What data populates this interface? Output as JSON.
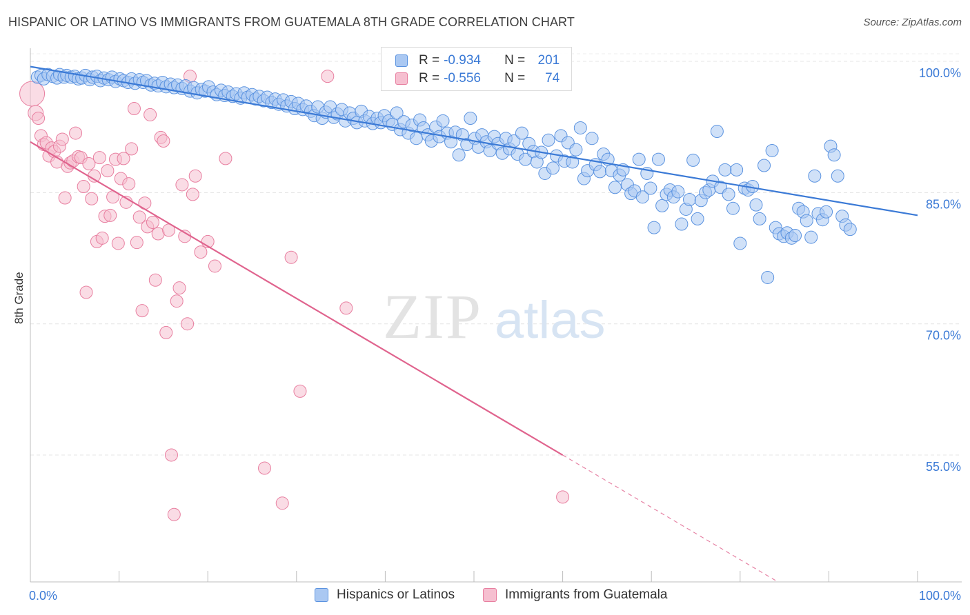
{
  "header": {
    "title": "HISPANIC OR LATINO VS IMMIGRANTS FROM GUATEMALA 8TH GRADE CORRELATION CHART",
    "source": "Source: ZipAtlas.com"
  },
  "watermark": {
    "zip": "ZIP",
    "atlas": "atlas"
  },
  "legend": {
    "r_label": "R =",
    "n_label": "N =",
    "series": [
      {
        "name": "Hispanics or Latinos",
        "r": "-0.934",
        "n": "201",
        "color": "#5b93e0",
        "fill": "#aac8f2"
      },
      {
        "name": "Immigrants from Guatemala",
        "r": "-0.556",
        "n": "74",
        "color": "#e87fa0",
        "fill": "#f6bfd0"
      }
    ]
  },
  "chart_data": {
    "type": "scatter",
    "title": "HISPANIC OR LATINO VS IMMIGRANTS FROM GUATEMALA 8TH GRADE CORRELATION CHART",
    "xlabel": "",
    "ylabel": "8th Grade",
    "xlim": [
      0,
      100
    ],
    "ylim": [
      40.5,
      101.5
    ],
    "x_tick_labels": [
      "0.0%",
      "100.0%"
    ],
    "y_ticks": [
      55,
      70,
      85,
      100
    ],
    "y_tick_labels": [
      "55.0%",
      "70.0%",
      "85.0%",
      "100.0%"
    ],
    "grid": true,
    "legend_position": "top-center",
    "series": [
      {
        "name": "Hispanics or Latinos",
        "color": "#3b7ad6",
        "trend": {
          "x0": 0,
          "y0": 99.4,
          "x1": 100,
          "y1": 82.4
        },
        "points": [
          [
            0.8,
            98.2
          ],
          [
            1.2,
            98.4
          ],
          [
            1.5,
            98.0
          ],
          [
            2.0,
            98.5
          ],
          [
            2.5,
            98.3
          ],
          [
            3.0,
            98.1
          ],
          [
            3.3,
            98.5
          ],
          [
            3.8,
            98.2
          ],
          [
            4.1,
            98.4
          ],
          [
            4.6,
            98.2
          ],
          [
            5.0,
            98.3
          ],
          [
            5.4,
            98.0
          ],
          [
            5.8,
            98.1
          ],
          [
            6.2,
            98.4
          ],
          [
            6.7,
            97.9
          ],
          [
            7.0,
            98.2
          ],
          [
            7.5,
            98.3
          ],
          [
            7.9,
            97.8
          ],
          [
            8.3,
            98.1
          ],
          [
            8.8,
            97.9
          ],
          [
            9.2,
            98.2
          ],
          [
            9.6,
            97.7
          ],
          [
            10.1,
            98.0
          ],
          [
            10.5,
            97.8
          ],
          [
            11.0,
            97.6
          ],
          [
            11.4,
            98.0
          ],
          [
            11.8,
            97.5
          ],
          [
            12.3,
            97.9
          ],
          [
            12.7,
            97.6
          ],
          [
            13.1,
            97.8
          ],
          [
            13.6,
            97.3
          ],
          [
            14.0,
            97.5
          ],
          [
            14.4,
            97.2
          ],
          [
            14.9,
            97.6
          ],
          [
            15.3,
            97.1
          ],
          [
            15.8,
            97.4
          ],
          [
            16.2,
            97.0
          ],
          [
            16.6,
            97.3
          ],
          [
            17.1,
            96.9
          ],
          [
            17.5,
            97.2
          ],
          [
            18.0,
            96.6
          ],
          [
            18.4,
            97.0
          ],
          [
            18.8,
            96.4
          ],
          [
            19.3,
            96.8
          ],
          [
            19.7,
            96.6
          ],
          [
            20.1,
            97.1
          ],
          [
            20.6,
            96.5
          ],
          [
            21.0,
            96.2
          ],
          [
            21.5,
            96.7
          ],
          [
            21.9,
            96.1
          ],
          [
            22.3,
            96.5
          ],
          [
            22.8,
            96.0
          ],
          [
            23.2,
            96.3
          ],
          [
            23.7,
            95.8
          ],
          [
            24.1,
            96.4
          ],
          [
            24.5,
            95.9
          ],
          [
            25.0,
            96.2
          ],
          [
            25.4,
            95.7
          ],
          [
            25.8,
            96.0
          ],
          [
            26.3,
            95.5
          ],
          [
            26.7,
            95.9
          ],
          [
            27.2,
            95.3
          ],
          [
            27.6,
            95.7
          ],
          [
            28.0,
            95.1
          ],
          [
            28.5,
            95.6
          ],
          [
            28.9,
            94.9
          ],
          [
            29.4,
            95.4
          ],
          [
            29.8,
            94.6
          ],
          [
            30.2,
            95.2
          ],
          [
            30.7,
            94.5
          ],
          [
            31.1,
            94.9
          ],
          [
            31.6,
            94.3
          ],
          [
            32.0,
            93.8
          ],
          [
            32.4,
            94.8
          ],
          [
            32.9,
            93.5
          ],
          [
            33.3,
            94.2
          ],
          [
            33.8,
            94.8
          ],
          [
            34.2,
            93.6
          ],
          [
            34.6,
            94.0
          ],
          [
            35.1,
            94.5
          ],
          [
            35.5,
            93.2
          ],
          [
            36.0,
            94.1
          ],
          [
            36.4,
            93.5
          ],
          [
            36.8,
            93.0
          ],
          [
            37.3,
            94.3
          ],
          [
            37.7,
            93.2
          ],
          [
            38.2,
            93.7
          ],
          [
            38.6,
            92.9
          ],
          [
            39.1,
            93.5
          ],
          [
            39.5,
            93.0
          ],
          [
            39.9,
            93.8
          ],
          [
            40.4,
            93.2
          ],
          [
            40.8,
            92.8
          ],
          [
            41.3,
            94.1
          ],
          [
            41.7,
            92.2
          ],
          [
            42.1,
            93.1
          ],
          [
            42.6,
            91.8
          ],
          [
            43.0,
            92.7
          ],
          [
            43.5,
            91.2
          ],
          [
            43.9,
            93.3
          ],
          [
            44.3,
            92.4
          ],
          [
            44.8,
            91.6
          ],
          [
            45.2,
            90.9
          ],
          [
            45.7,
            92.5
          ],
          [
            46.1,
            91.4
          ],
          [
            46.5,
            93.2
          ],
          [
            47.0,
            91.8
          ],
          [
            47.4,
            90.8
          ],
          [
            47.9,
            91.9
          ],
          [
            48.3,
            89.3
          ],
          [
            48.7,
            91.6
          ],
          [
            49.2,
            90.5
          ],
          [
            49.6,
            93.5
          ],
          [
            50.1,
            91.2
          ],
          [
            50.5,
            90.2
          ],
          [
            50.9,
            91.6
          ],
          [
            51.4,
            90.8
          ],
          [
            51.8,
            89.8
          ],
          [
            52.3,
            91.4
          ],
          [
            52.7,
            90.6
          ],
          [
            53.2,
            89.5
          ],
          [
            53.6,
            91.2
          ],
          [
            54.0,
            90.0
          ],
          [
            54.5,
            90.9
          ],
          [
            54.9,
            89.4
          ],
          [
            55.4,
            91.8
          ],
          [
            55.8,
            88.8
          ],
          [
            56.2,
            90.6
          ],
          [
            56.7,
            89.7
          ],
          [
            57.1,
            88.5
          ],
          [
            57.6,
            89.6
          ],
          [
            58.0,
            87.2
          ],
          [
            58.4,
            91.0
          ],
          [
            58.9,
            87.8
          ],
          [
            59.3,
            89.2
          ],
          [
            59.8,
            91.5
          ],
          [
            60.2,
            88.6
          ],
          [
            60.6,
            90.7
          ],
          [
            61.1,
            88.5
          ],
          [
            61.5,
            89.9
          ],
          [
            62.0,
            92.4
          ],
          [
            62.4,
            86.6
          ],
          [
            62.8,
            87.5
          ],
          [
            63.3,
            91.2
          ],
          [
            63.7,
            88.2
          ],
          [
            64.2,
            87.4
          ],
          [
            64.6,
            89.4
          ],
          [
            65.1,
            88.8
          ],
          [
            65.5,
            87.5
          ],
          [
            65.9,
            85.6
          ],
          [
            66.4,
            87.0
          ],
          [
            66.8,
            87.6
          ],
          [
            67.3,
            85.9
          ],
          [
            67.7,
            84.9
          ],
          [
            68.1,
            85.2
          ],
          [
            68.6,
            88.8
          ],
          [
            69.0,
            84.5
          ],
          [
            69.5,
            87.2
          ],
          [
            69.9,
            85.5
          ],
          [
            70.3,
            81.0
          ],
          [
            70.8,
            88.8
          ],
          [
            71.2,
            83.5
          ],
          [
            71.7,
            84.8
          ],
          [
            72.1,
            85.3
          ],
          [
            72.5,
            84.5
          ],
          [
            73.0,
            85.1
          ],
          [
            73.4,
            81.4
          ],
          [
            73.9,
            83.1
          ],
          [
            74.3,
            84.2
          ],
          [
            74.7,
            88.7
          ],
          [
            75.2,
            82.0
          ],
          [
            75.6,
            84.1
          ],
          [
            76.1,
            85.0
          ],
          [
            76.5,
            85.3
          ],
          [
            76.9,
            86.3
          ],
          [
            77.4,
            92.0
          ],
          [
            77.8,
            85.6
          ],
          [
            78.3,
            87.6
          ],
          [
            78.7,
            84.8
          ],
          [
            79.2,
            83.2
          ],
          [
            79.6,
            87.6
          ],
          [
            80.0,
            79.2
          ],
          [
            80.5,
            85.5
          ],
          [
            80.9,
            85.3
          ],
          [
            81.4,
            85.7
          ],
          [
            81.8,
            83.6
          ],
          [
            82.2,
            82.0
          ],
          [
            82.7,
            88.1
          ],
          [
            83.1,
            75.3
          ],
          [
            83.6,
            89.8
          ],
          [
            84.0,
            81.0
          ],
          [
            84.4,
            80.3
          ],
          [
            84.9,
            80.0
          ],
          [
            85.3,
            80.4
          ],
          [
            85.8,
            79.8
          ],
          [
            86.2,
            80.1
          ],
          [
            86.6,
            83.2
          ],
          [
            87.1,
            82.8
          ],
          [
            87.5,
            81.8
          ],
          [
            88.0,
            79.9
          ],
          [
            88.4,
            86.9
          ],
          [
            88.8,
            82.6
          ],
          [
            89.3,
            81.9
          ],
          [
            89.7,
            82.8
          ],
          [
            90.2,
            90.3
          ],
          [
            90.6,
            89.3
          ],
          [
            91.0,
            86.9
          ],
          [
            91.5,
            82.3
          ],
          [
            91.9,
            81.3
          ],
          [
            92.4,
            80.8
          ]
        ]
      },
      {
        "name": "Immigrants from Guatemala",
        "color": "#e0648e",
        "trend": {
          "x0": 0,
          "y0": 90.8,
          "x1": 60,
          "y1": 55.0
        },
        "trend_dashed": {
          "x0": 60,
          "y0": 55.0,
          "x1": 100,
          "y1": 31.1
        },
        "points": [
          [
            0.2,
            96.3
          ],
          [
            0.6,
            94.1
          ],
          [
            0.9,
            93.5
          ],
          [
            1.2,
            91.5
          ],
          [
            1.5,
            90.5
          ],
          [
            1.8,
            90.7
          ],
          [
            2.1,
            89.2
          ],
          [
            2.4,
            90.1
          ],
          [
            2.7,
            89.7
          ],
          [
            3.0,
            88.5
          ],
          [
            3.3,
            90.3
          ],
          [
            3.6,
            91.1
          ],
          [
            3.9,
            84.4
          ],
          [
            4.2,
            88.0
          ],
          [
            4.5,
            88.4
          ],
          [
            4.8,
            88.6
          ],
          [
            5.1,
            91.8
          ],
          [
            5.4,
            89.1
          ],
          [
            5.7,
            89.0
          ],
          [
            6.0,
            85.7
          ],
          [
            6.3,
            73.6
          ],
          [
            6.6,
            88.3
          ],
          [
            6.9,
            84.3
          ],
          [
            7.2,
            86.9
          ],
          [
            7.5,
            79.4
          ],
          [
            7.8,
            89.0
          ],
          [
            8.1,
            79.8
          ],
          [
            8.4,
            82.3
          ],
          [
            8.7,
            87.5
          ],
          [
            9.0,
            82.4
          ],
          [
            9.3,
            84.5
          ],
          [
            9.6,
            88.8
          ],
          [
            9.9,
            79.2
          ],
          [
            10.2,
            86.6
          ],
          [
            10.5,
            88.9
          ],
          [
            10.8,
            83.9
          ],
          [
            11.1,
            86.0
          ],
          [
            11.4,
            90.0
          ],
          [
            11.7,
            94.6
          ],
          [
            12.0,
            79.3
          ],
          [
            12.3,
            82.2
          ],
          [
            12.6,
            71.5
          ],
          [
            12.9,
            83.8
          ],
          [
            13.2,
            81.1
          ],
          [
            13.5,
            93.9
          ],
          [
            13.8,
            81.6
          ],
          [
            14.1,
            75.0
          ],
          [
            14.4,
            80.3
          ],
          [
            14.7,
            91.3
          ],
          [
            15.0,
            90.9
          ],
          [
            15.3,
            69.0
          ],
          [
            15.6,
            80.7
          ],
          [
            15.9,
            55.0
          ],
          [
            16.2,
            48.2
          ],
          [
            16.5,
            72.6
          ],
          [
            16.8,
            74.1
          ],
          [
            17.1,
            85.9
          ],
          [
            17.4,
            80.0
          ],
          [
            17.7,
            70.0
          ],
          [
            18.0,
            98.3
          ],
          [
            18.3,
            84.8
          ],
          [
            18.6,
            86.9
          ],
          [
            19.2,
            78.2
          ],
          [
            20.0,
            79.4
          ],
          [
            20.8,
            76.6
          ],
          [
            22.0,
            88.9
          ],
          [
            26.4,
            53.5
          ],
          [
            28.4,
            49.5
          ],
          [
            29.4,
            77.6
          ],
          [
            30.4,
            62.3
          ],
          [
            33.5,
            98.3
          ],
          [
            35.6,
            71.8
          ],
          [
            60.0,
            50.2
          ]
        ]
      }
    ]
  }
}
